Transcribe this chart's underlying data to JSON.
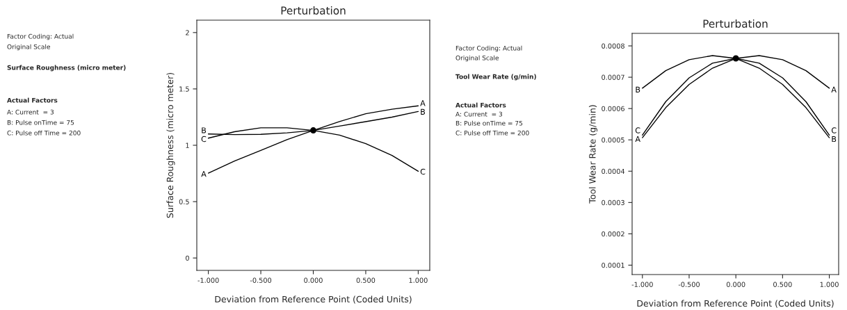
{
  "chart_data": [
    {
      "type": "line",
      "title": "Perturbation",
      "xlabel": "Deviation from Reference Point (Coded Units)",
      "ylabel": "Surface Roughness (micro meter)",
      "x": [
        -1,
        -0.75,
        -0.5,
        -0.25,
        0,
        0.25,
        0.5,
        0.75,
        1
      ],
      "series": [
        {
          "name": "A",
          "color": "#000000",
          "values": [
            0.753,
            0.86,
            0.954,
            1.05,
            1.132,
            1.21,
            1.28,
            1.32,
            1.35
          ]
        },
        {
          "name": "B",
          "color": "#000000",
          "values": [
            1.1,
            1.095,
            1.097,
            1.11,
            1.132,
            1.17,
            1.21,
            1.25,
            1.3
          ]
        },
        {
          "name": "C",
          "color": "#000000",
          "values": [
            1.063,
            1.12,
            1.155,
            1.155,
            1.132,
            1.09,
            1.015,
            0.91,
            0.769
          ]
        },
        {
          "type": "scatter",
          "color": "#000000",
          "marker": "circle",
          "x": [
            0
          ],
          "values": [
            1.132
          ]
        }
      ],
      "xlim": [
        -1.11,
        1.11
      ],
      "ylim": [
        -0.11,
        2.11
      ],
      "xticks": [
        {
          "value": -1,
          "label": "-1.000"
        },
        {
          "value": -0.5,
          "label": "-0.500"
        },
        {
          "value": 0,
          "label": "0.000"
        },
        {
          "value": 0.5,
          "label": "0.500"
        },
        {
          "value": 1,
          "label": "1.000"
        }
      ],
      "yticks": [
        0,
        0.5,
        1,
        1.5,
        2
      ],
      "marker": "none",
      "line_style": "solid",
      "grid": false,
      "legend": false,
      "annotations": [
        "Factor Coding: Actual",
        "Original Scale",
        "Surface Roughness (micro meter)",
        "Actual Factors",
        "A: Current  = 3",
        "B: Pulse onTime = 75",
        "C: Pulse off Time = 200"
      ]
    },
    {
      "type": "line",
      "title": "Perturbation",
      "xlabel": "Deviation from Reference Point (Coded Units)",
      "ylabel": "Tool Wear Rate (g/min)",
      "x": [
        -1,
        -0.75,
        -0.5,
        -0.25,
        0,
        0.25,
        0.5,
        0.75,
        1
      ],
      "series": [
        {
          "name": "A",
          "color": "#000000",
          "values": [
            0.000507,
            0.000603,
            0.000677,
            0.000729,
            0.00076,
            0.000769,
            0.000756,
            0.000721,
            0.000665
          ]
        },
        {
          "name": "B",
          "color": "#000000",
          "values": [
            0.000665,
            0.000721,
            0.000756,
            0.000769,
            0.00076,
            0.000729,
            0.000677,
            0.000603,
            0.000507
          ]
        },
        {
          "name": "C",
          "color": "#000000",
          "values": [
            0.000515,
            0.000622,
            0.000698,
            0.000745,
            0.00076,
            0.000745,
            0.000698,
            0.000622,
            0.000515
          ]
        },
        {
          "type": "scatter",
          "color": "#000000",
          "marker": "circle",
          "x": [
            0
          ],
          "values": [
            0.00076
          ]
        }
      ],
      "xlim": [
        -1.11,
        1.1
      ],
      "ylim": [
        7e-05,
        0.00084
      ],
      "xticks": [
        {
          "value": -1,
          "label": "-1.000"
        },
        {
          "value": -0.5,
          "label": "-0.500"
        },
        {
          "value": 0,
          "label": "0.000"
        },
        {
          "value": 0.5,
          "label": "0.500"
        },
        {
          "value": 1,
          "label": "1.000"
        }
      ],
      "yticks": [
        0.0001,
        0.0002,
        0.0003,
        0.0004,
        0.0005,
        0.0006,
        0.0007,
        0.0008
      ],
      "marker": "none",
      "line_style": "solid",
      "grid": false,
      "legend": false,
      "annotations": [
        "Factor Coding: Actual",
        "Original Scale",
        "Tool Wear Rate (g/min)",
        "Actual Factors",
        "A: Current  = 3",
        "B: Pulse onTime = 75",
        "C: Pulse off Time = 200"
      ]
    }
  ]
}
